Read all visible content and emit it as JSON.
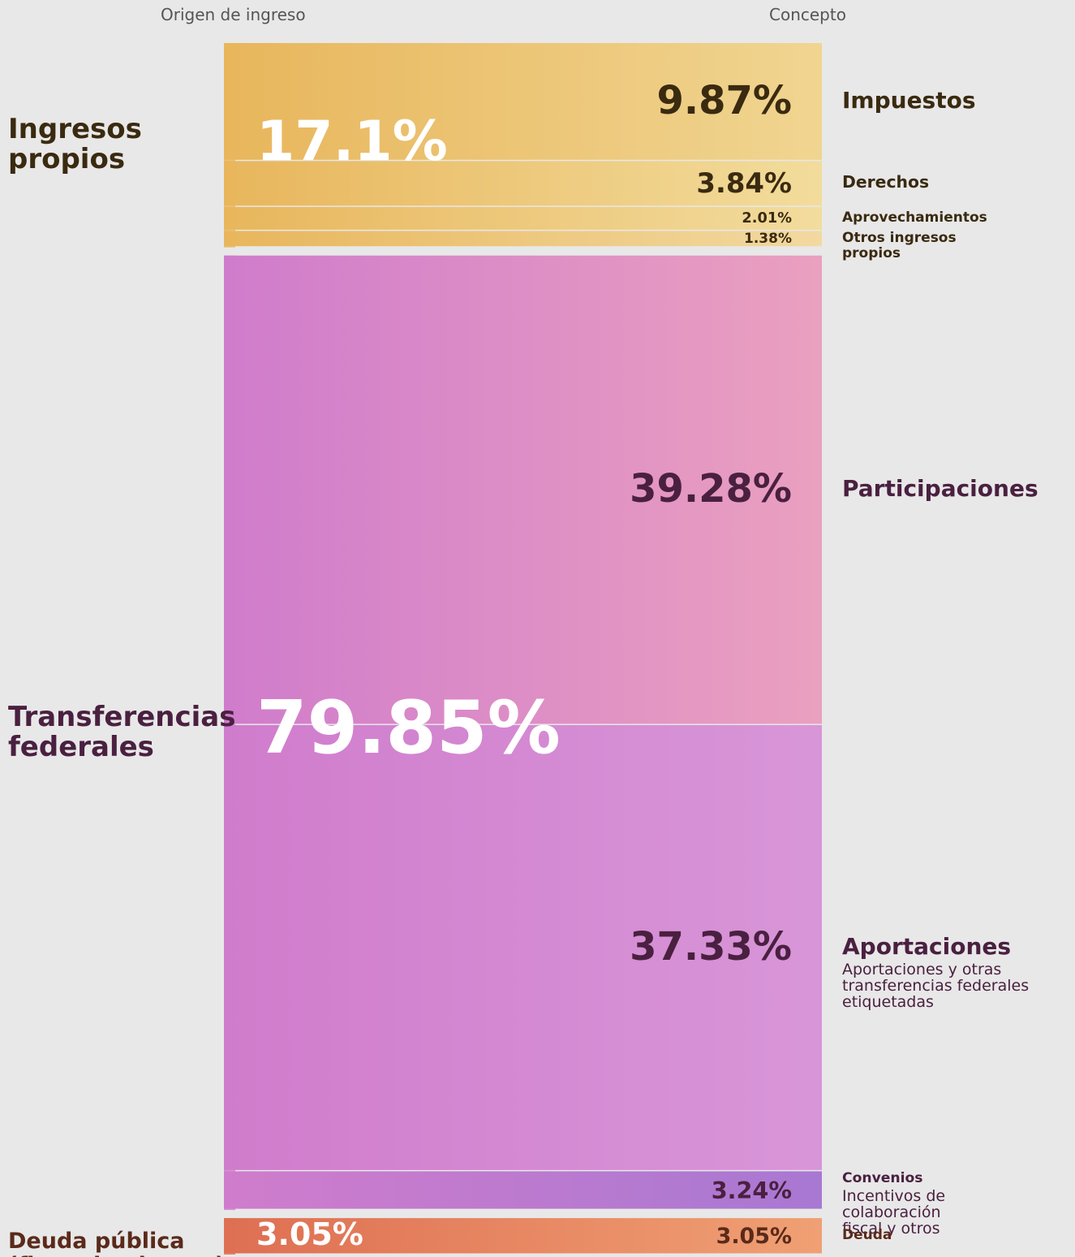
{
  "chart_data": {
    "type": "flow",
    "left_header": "Origen de ingreso",
    "right_header": "Concepto",
    "groups": [
      {
        "name": "Ingresos propios",
        "value": 17.1,
        "value_label": "17.1%",
        "color": "#e8b65c",
        "text_color": "#3a2a10",
        "items": [
          {
            "name": "Impuestos",
            "value": 9.87,
            "value_label": "9.87%",
            "color": "#f0d591"
          },
          {
            "name": "Derechos",
            "value": 3.84,
            "value_label": "3.84%",
            "color": "#f2dc9c"
          },
          {
            "name": "Aprovechamientos",
            "value": 2.01,
            "value_label": "2.01%",
            "color": "#f2dc9e"
          },
          {
            "name": "Otros ingresos propios",
            "value": 1.38,
            "value_label": "1.38%",
            "color": "#f2d9a0"
          }
        ]
      },
      {
        "name": "Transferencias federales",
        "value": 79.85,
        "value_label": "79.85%",
        "color": "#d07ccc",
        "text_color": "#4a2040",
        "items": [
          {
            "name": "Participaciones",
            "value": 39.28,
            "value_label": "39.28%",
            "color": "#eaa0bf"
          },
          {
            "name": "Aportaciones",
            "description": "Aportaciones y otras transferencias federales etiquetadas",
            "value": 37.33,
            "value_label": "37.33%",
            "color": "#d896d8"
          },
          {
            "name": "Convenios",
            "description": "Incentivos de colaboración fiscal y otros",
            "value": 3.24,
            "value_label": "3.24%",
            "color": "#a878d2"
          }
        ]
      },
      {
        "name": "Deuda pública (financiamientos)",
        "value": 3.05,
        "value_label": "3.05%",
        "color": "#de6f52",
        "text_color": "#5a2a1a",
        "items": [
          {
            "name": "Deuda",
            "value": 3.05,
            "value_label": "3.05%",
            "color": "#f0a074"
          }
        ]
      }
    ]
  }
}
